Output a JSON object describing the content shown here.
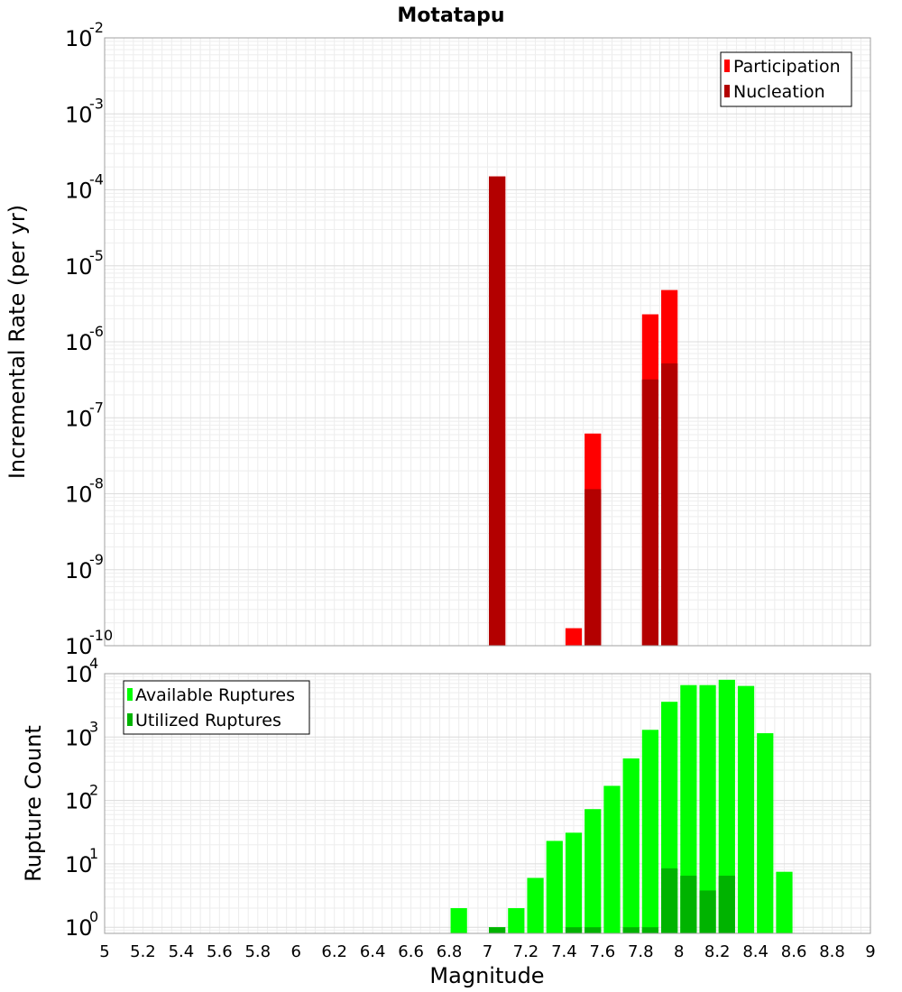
{
  "chart_data": [
    {
      "type": "bar",
      "title": "Motatapu",
      "xlabel": "",
      "ylabel": "Incremental Rate (per yr)",
      "yscale": "log",
      "xlim": [
        5,
        9
      ],
      "ylim": [
        1e-10,
        0.01
      ],
      "y_tick_exponents": [
        -10,
        -9,
        -8,
        -7,
        -6,
        -5,
        -4,
        -3,
        -2
      ],
      "grid": true,
      "legend_position": "top-right",
      "bin_width": 0.1,
      "series": [
        {
          "name": "Participation",
          "color": "#ff0000",
          "x": [
            7.05,
            7.45,
            7.55,
            7.85,
            7.95
          ],
          "values": [
            0.00015,
            1.7e-10,
            6.2e-08,
            2.3e-06,
            4.8e-06
          ]
        },
        {
          "name": "Nucleation",
          "color": "#b30000",
          "x": [
            7.05,
            7.55,
            7.85,
            7.95
          ],
          "values": [
            0.00015,
            1.15e-08,
            3.2e-07,
            5.2e-07
          ]
        }
      ]
    },
    {
      "type": "bar",
      "title": "",
      "xlabel": "Magnitude",
      "ylabel": "Rupture Count",
      "yscale": "log",
      "xlim": [
        5,
        9
      ],
      "ylim": [
        0.8,
        10000
      ],
      "y_tick_exponents": [
        0,
        1,
        2,
        3,
        4
      ],
      "x_ticks": [
        "5",
        "5.2",
        "5.4",
        "5.6",
        "5.8",
        "6",
        "6.2",
        "6.4",
        "6.6",
        "6.8",
        "7",
        "7.2",
        "7.4",
        "7.6",
        "7.8",
        "8",
        "8.2",
        "8.4",
        "8.6",
        "8.8",
        "9"
      ],
      "grid": true,
      "legend_position": "top-left",
      "bin_width": 0.1,
      "series": [
        {
          "name": "Available Ruptures",
          "color": "#00ff00",
          "x": [
            6.85,
            7.05,
            7.15,
            7.25,
            7.35,
            7.45,
            7.55,
            7.65,
            7.75,
            7.85,
            7.95,
            8.05,
            8.15,
            8.25,
            8.35,
            8.45,
            8.55
          ],
          "values": [
            2,
            1,
            2,
            6,
            23,
            31,
            73,
            170,
            460,
            1300,
            3600,
            6600,
            6600,
            8000,
            6400,
            1150,
            7.5
          ]
        },
        {
          "name": "Utilized Ruptures",
          "color": "#00b300",
          "x": [
            7.05,
            7.45,
            7.55,
            7.75,
            7.85,
            7.95,
            8.05,
            8.15,
            8.25
          ],
          "values": [
            1,
            1,
            1,
            1,
            1,
            8.5,
            6.5,
            3.8,
            6.5
          ]
        }
      ]
    }
  ]
}
